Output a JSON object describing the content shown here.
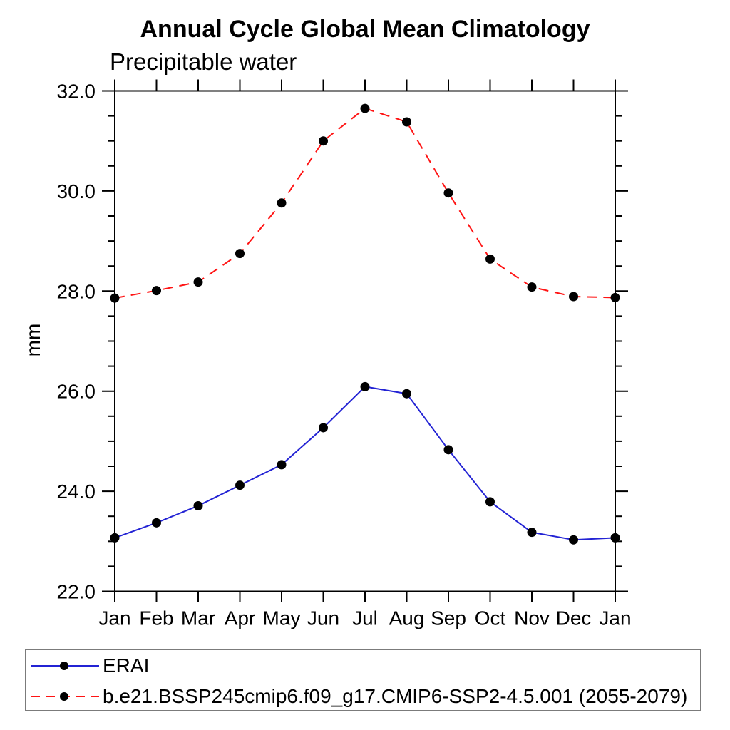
{
  "title": "Annual Cycle Global Mean Climatology",
  "subtitle": "Precipitable water",
  "ylabel": "mm",
  "chart_data": {
    "type": "line",
    "categories": [
      "Jan",
      "Feb",
      "Mar",
      "Apr",
      "May",
      "Jun",
      "Jul",
      "Aug",
      "Sep",
      "Oct",
      "Nov",
      "Dec",
      "Jan"
    ],
    "series": [
      {
        "name": "ERAI",
        "line_style": "solid",
        "line_color": "#2323d4",
        "marker": "circle",
        "marker_color": "#000000",
        "values": [
          23.07,
          23.37,
          23.71,
          24.12,
          24.53,
          25.27,
          26.09,
          25.95,
          24.83,
          23.79,
          23.18,
          23.03,
          23.07
        ]
      },
      {
        "name": "b.e21.BSSP245cmip6.f09_g17.CMIP6-SSP2-4.5.001 (2055-2079)",
        "line_style": "dashed",
        "line_color": "#ff1414",
        "marker": "circle",
        "marker_color": "#000000",
        "values": [
          27.86,
          28.01,
          28.18,
          28.75,
          29.76,
          31.0,
          31.65,
          31.38,
          29.96,
          28.64,
          28.08,
          27.89,
          27.87
        ]
      }
    ],
    "title": "Annual Cycle Global Mean Climatology",
    "subtitle": "Precipitable water",
    "xlabel": "",
    "ylabel": "mm",
    "ylim": [
      22.0,
      32.0
    ],
    "y_major_step": 2.0,
    "y_minor_step": 0.5,
    "y_tick_labels": [
      "22.0",
      "24.0",
      "26.0",
      "28.0",
      "30.0",
      "32.0"
    ],
    "grid": false,
    "legend_position": "bottom",
    "frame_color": "#000000",
    "axis_text_color": "#000000"
  }
}
